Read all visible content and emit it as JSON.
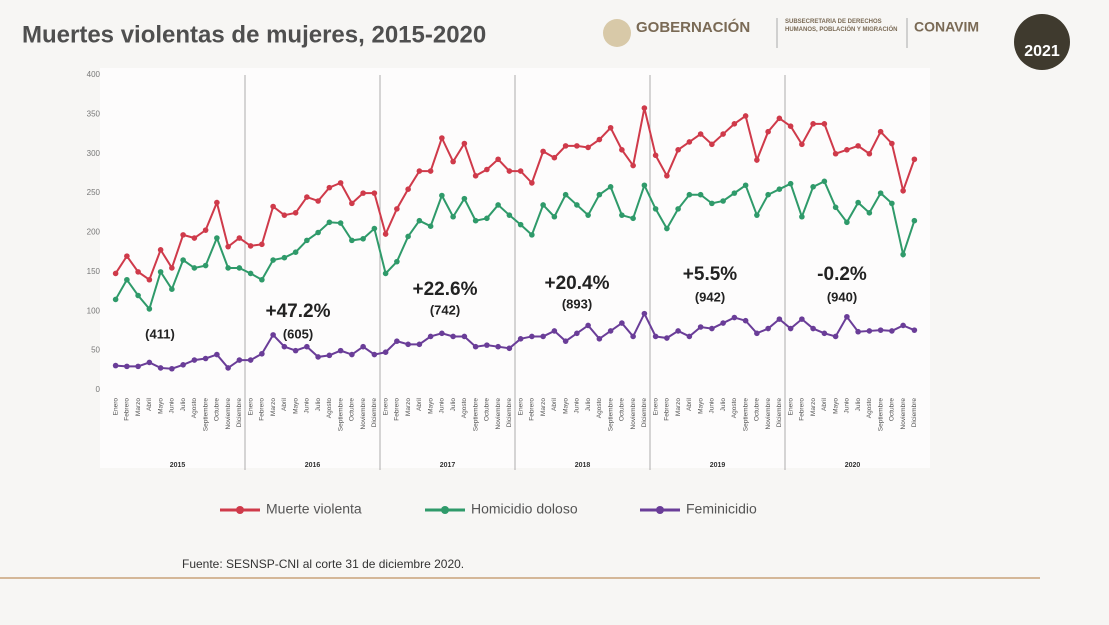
{
  "page": {
    "logo_main": "GOBERNACIÓN",
    "logo_sub": "SUBSECRETARÍA DE DERECHOS HUMANOS, POBLACIÓN Y MIGRACIÓN",
    "logo_conavim": "CONAVIM",
    "badge": "2021"
  },
  "chart_data": {
    "type": "line",
    "title": "Muertes violentas de mujeres, 2015-2020",
    "source": "Fuente: SESNSP-CNI al corte 31 de diciembre 2020.",
    "categories": [
      "Enero",
      "Febrero",
      "Marzo",
      "Abril",
      "Mayo",
      "Junio",
      "Julio",
      "Agosto",
      "Septiembre",
      "Octubre",
      "Noviembre",
      "Diciembre",
      "Enero",
      "Febrero",
      "Marzo",
      "Abril",
      "Mayo",
      "Junio",
      "Julio",
      "Agosto",
      "Septiembre",
      "Octubre",
      "Noviembre",
      "Diciembre",
      "Enero",
      "Febrero",
      "Marzo",
      "Abril",
      "Mayo",
      "Junio",
      "Julio",
      "Agosto",
      "Septiembre",
      "Octubre",
      "Noviembre",
      "Diciembre",
      "Enero",
      "Febrero",
      "Marzo",
      "Abril",
      "Mayo",
      "Junio",
      "Julio",
      "Agosto",
      "Septiembre",
      "Octubre",
      "Noviembre",
      "Diciembre",
      "Enero",
      "Febrero",
      "Marzo",
      "Abril",
      "Mayo",
      "Junio",
      "Julio",
      "Agosto",
      "Septiembre",
      "Octubre",
      "Noviembre",
      "Diciembre",
      "Enero",
      "Febrero",
      "Marzo",
      "Abril",
      "Mayo",
      "Junio",
      "Julio",
      "Agosto",
      "Septiembre",
      "Octubre",
      "Noviembre",
      "Diciembre"
    ],
    "groups": [
      "2015",
      "2016",
      "2017",
      "2018",
      "2019",
      "2020"
    ],
    "series": [
      {
        "name": "Muerte violenta",
        "color": "#cf3a4a",
        "values": [
          148,
          170,
          150,
          140,
          178,
          155,
          197,
          193,
          203,
          238,
          182,
          193,
          183,
          185,
          233,
          222,
          225,
          245,
          240,
          257,
          263,
          237,
          250,
          250,
          198,
          230,
          255,
          278,
          278,
          320,
          290,
          313,
          272,
          280,
          293,
          278,
          278,
          263,
          303,
          295,
          310,
          310,
          308,
          318,
          333,
          305,
          285,
          358,
          298,
          272,
          305,
          315,
          325,
          312,
          325,
          338,
          348,
          292,
          328,
          345,
          335,
          312,
          338,
          338,
          300,
          305,
          310,
          300,
          328,
          313,
          253,
          293
        ]
      },
      {
        "name": "Homicidio doloso",
        "color": "#2f9a6a",
        "values": [
          115,
          140,
          120,
          103,
          150,
          128,
          165,
          155,
          158,
          193,
          155,
          155,
          148,
          140,
          165,
          168,
          175,
          190,
          200,
          213,
          212,
          190,
          192,
          205,
          148,
          163,
          195,
          215,
          208,
          247,
          220,
          243,
          215,
          218,
          235,
          222,
          210,
          197,
          235,
          220,
          248,
          235,
          222,
          248,
          258,
          222,
          218,
          260,
          230,
          205,
          230,
          248,
          248,
          237,
          240,
          250,
          260,
          222,
          248,
          255,
          262,
          220,
          258,
          265,
          232,
          213,
          238,
          225,
          250,
          237,
          172,
          215
        ]
      },
      {
        "name": "Feminicidio",
        "color": "#6a3d98",
        "values": [
          31,
          30,
          30,
          35,
          28,
          27,
          32,
          38,
          40,
          45,
          28,
          38,
          38,
          46,
          70,
          55,
          50,
          55,
          42,
          44,
          50,
          45,
          55,
          45,
          48,
          62,
          58,
          58,
          68,
          72,
          68,
          68,
          55,
          57,
          55,
          53,
          65,
          68,
          68,
          75,
          62,
          72,
          82,
          65,
          75,
          85,
          68,
          97,
          68,
          66,
          75,
          68,
          80,
          78,
          85,
          92,
          88,
          72,
          78,
          90,
          78,
          90,
          78,
          72,
          68,
          93,
          74,
          75,
          76,
          75,
          82,
          76
        ]
      }
    ],
    "ylim": [
      0,
      400
    ],
    "yticks": [
      0,
      50,
      100,
      150,
      200,
      250,
      300,
      350,
      400
    ],
    "grid": false,
    "annotations": [
      "(411)",
      "+47.2%",
      "(605)",
      "+22.6%",
      "(742)",
      "+20.4%",
      "(893)",
      "+5.5%",
      "(942)",
      "-0.2%",
      "(940)"
    ]
  }
}
